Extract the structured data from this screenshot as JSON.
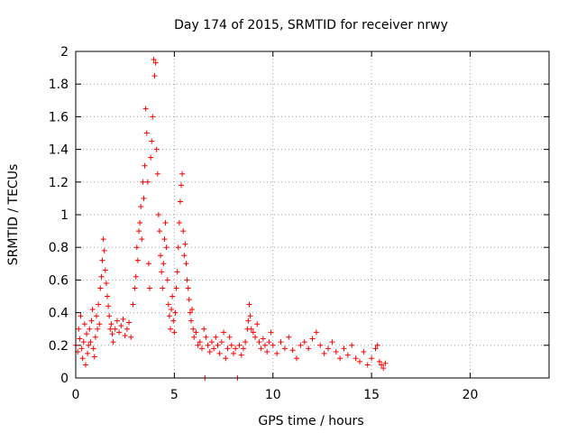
{
  "chart_data": {
    "type": "scatter",
    "title": "Day 174 of 2015, SRMTID for receiver nrwy",
    "xlabel": "GPS time / hours",
    "ylabel": "SRMTID / TECUs",
    "xlim": [
      0,
      24
    ],
    "ylim": [
      0,
      2
    ],
    "xticks": [
      0,
      5,
      10,
      15,
      20
    ],
    "yticks": [
      0,
      0.2,
      0.4,
      0.6,
      0.8,
      1,
      1.2,
      1.4,
      1.6,
      1.8,
      2
    ],
    "grid": true,
    "marker": "plus",
    "color": "#ff0000",
    "series": [
      {
        "name": "SRMTID",
        "points": [
          [
            0.0,
            0.2
          ],
          [
            0.1,
            0.16
          ],
          [
            0.15,
            0.3
          ],
          [
            0.2,
            0.24
          ],
          [
            0.25,
            0.38
          ],
          [
            0.3,
            0.18
          ],
          [
            0.35,
            0.12
          ],
          [
            0.4,
            0.22
          ],
          [
            0.45,
            0.33
          ],
          [
            0.5,
            0.08
          ],
          [
            0.55,
            0.27
          ],
          [
            0.6,
            0.15
          ],
          [
            0.65,
            0.2
          ],
          [
            0.7,
            0.3
          ],
          [
            0.75,
            0.22
          ],
          [
            0.8,
            0.35
          ],
          [
            0.85,
            0.42
          ],
          [
            0.9,
            0.18
          ],
          [
            0.95,
            0.13
          ],
          [
            1.0,
            0.25
          ],
          [
            1.05,
            0.38
          ],
          [
            1.1,
            0.3
          ],
          [
            1.15,
            0.45
          ],
          [
            1.2,
            0.33
          ],
          [
            1.25,
            0.55
          ],
          [
            1.3,
            0.62
          ],
          [
            1.35,
            0.72
          ],
          [
            1.4,
            0.85
          ],
          [
            1.45,
            0.78
          ],
          [
            1.5,
            0.66
          ],
          [
            1.55,
            0.58
          ],
          [
            1.6,
            0.5
          ],
          [
            1.65,
            0.44
          ],
          [
            1.7,
            0.38
          ],
          [
            1.75,
            0.3
          ],
          [
            1.8,
            0.33
          ],
          [
            1.85,
            0.27
          ],
          [
            1.9,
            0.22
          ],
          [
            2.0,
            0.3
          ],
          [
            2.1,
            0.35
          ],
          [
            2.2,
            0.28
          ],
          [
            2.3,
            0.32
          ],
          [
            2.4,
            0.36
          ],
          [
            2.5,
            0.26
          ],
          [
            2.6,
            0.3
          ],
          [
            2.7,
            0.34
          ],
          [
            2.8,
            0.25
          ],
          [
            2.9,
            0.45
          ],
          [
            3.0,
            0.55
          ],
          [
            3.05,
            0.62
          ],
          [
            3.1,
            0.8
          ],
          [
            3.15,
            0.72
          ],
          [
            3.2,
            0.9
          ],
          [
            3.25,
            0.95
          ],
          [
            3.3,
            1.05
          ],
          [
            3.35,
            0.85
          ],
          [
            3.4,
            1.2
          ],
          [
            3.45,
            1.1
          ],
          [
            3.5,
            1.3
          ],
          [
            3.55,
            1.65
          ],
          [
            3.6,
            1.5
          ],
          [
            3.65,
            1.2
          ],
          [
            3.7,
            0.7
          ],
          [
            3.75,
            0.55
          ],
          [
            3.8,
            1.35
          ],
          [
            3.85,
            1.45
          ],
          [
            3.9,
            1.6
          ],
          [
            3.95,
            1.95
          ],
          [
            4.0,
            1.85
          ],
          [
            4.05,
            1.93
          ],
          [
            4.1,
            1.4
          ],
          [
            4.15,
            1.25
          ],
          [
            4.2,
            1.0
          ],
          [
            4.25,
            0.9
          ],
          [
            4.3,
            0.75
          ],
          [
            4.35,
            0.65
          ],
          [
            4.4,
            0.55
          ],
          [
            4.45,
            0.7
          ],
          [
            4.5,
            0.85
          ],
          [
            4.55,
            0.95
          ],
          [
            4.6,
            0.8
          ],
          [
            4.65,
            0.6
          ],
          [
            4.7,
            0.45
          ],
          [
            4.75,
            0.38
          ],
          [
            4.8,
            0.3
          ],
          [
            4.85,
            0.42
          ],
          [
            4.9,
            0.5
          ],
          [
            4.95,
            0.35
          ],
          [
            5.0,
            0.28
          ],
          [
            5.05,
            0.4
          ],
          [
            5.1,
            0.55
          ],
          [
            5.15,
            0.65
          ],
          [
            5.2,
            0.8
          ],
          [
            5.25,
            0.95
          ],
          [
            5.3,
            1.08
          ],
          [
            5.35,
            1.18
          ],
          [
            5.4,
            1.25
          ],
          [
            5.45,
            0.9
          ],
          [
            5.5,
            0.75
          ],
          [
            5.55,
            0.82
          ],
          [
            5.6,
            0.7
          ],
          [
            5.65,
            0.6
          ],
          [
            5.7,
            0.55
          ],
          [
            5.75,
            0.48
          ],
          [
            5.8,
            0.4
          ],
          [
            5.85,
            0.35
          ],
          [
            5.9,
            0.42
          ],
          [
            5.95,
            0.3
          ],
          [
            6.0,
            0.25
          ],
          [
            6.1,
            0.28
          ],
          [
            6.2,
            0.2
          ],
          [
            6.3,
            0.22
          ],
          [
            6.4,
            0.18
          ],
          [
            6.5,
            0.3
          ],
          [
            6.55,
            0.0
          ],
          [
            6.6,
            0.25
          ],
          [
            6.7,
            0.2
          ],
          [
            6.8,
            0.16
          ],
          [
            6.9,
            0.22
          ],
          [
            7.0,
            0.18
          ],
          [
            7.1,
            0.25
          ],
          [
            7.2,
            0.2
          ],
          [
            7.3,
            0.15
          ],
          [
            7.4,
            0.22
          ],
          [
            7.5,
            0.28
          ],
          [
            7.6,
            0.12
          ],
          [
            7.7,
            0.18
          ],
          [
            7.8,
            0.25
          ],
          [
            7.9,
            0.2
          ],
          [
            8.0,
            0.15
          ],
          [
            8.1,
            0.18
          ],
          [
            8.2,
            0.0
          ],
          [
            8.3,
            0.2
          ],
          [
            8.4,
            0.14
          ],
          [
            8.5,
            0.18
          ],
          [
            8.6,
            0.22
          ],
          [
            8.7,
            0.3
          ],
          [
            8.75,
            0.35
          ],
          [
            8.8,
            0.45
          ],
          [
            8.85,
            0.38
          ],
          [
            8.9,
            0.3
          ],
          [
            9.0,
            0.28
          ],
          [
            9.1,
            0.25
          ],
          [
            9.2,
            0.33
          ],
          [
            9.3,
            0.22
          ],
          [
            9.4,
            0.18
          ],
          [
            9.5,
            0.24
          ],
          [
            9.6,
            0.2
          ],
          [
            9.7,
            0.16
          ],
          [
            9.8,
            0.22
          ],
          [
            9.9,
            0.28
          ],
          [
            10.0,
            0.2
          ],
          [
            10.2,
            0.15
          ],
          [
            10.4,
            0.22
          ],
          [
            10.6,
            0.18
          ],
          [
            10.8,
            0.25
          ],
          [
            11.0,
            0.17
          ],
          [
            11.2,
            0.12
          ],
          [
            11.4,
            0.2
          ],
          [
            11.6,
            0.22
          ],
          [
            11.8,
            0.18
          ],
          [
            12.0,
            0.24
          ],
          [
            12.2,
            0.28
          ],
          [
            12.4,
            0.2
          ],
          [
            12.6,
            0.15
          ],
          [
            12.8,
            0.18
          ],
          [
            13.0,
            0.22
          ],
          [
            13.2,
            0.16
          ],
          [
            13.4,
            0.12
          ],
          [
            13.6,
            0.18
          ],
          [
            13.8,
            0.14
          ],
          [
            14.0,
            0.2
          ],
          [
            14.2,
            0.12
          ],
          [
            14.4,
            0.1
          ],
          [
            14.6,
            0.16
          ],
          [
            14.8,
            0.08
          ],
          [
            15.0,
            0.12
          ],
          [
            15.2,
            0.18
          ],
          [
            15.3,
            0.2
          ],
          [
            15.4,
            0.1
          ],
          [
            15.5,
            0.08
          ],
          [
            15.6,
            0.06
          ],
          [
            15.7,
            0.09
          ]
        ]
      }
    ]
  }
}
